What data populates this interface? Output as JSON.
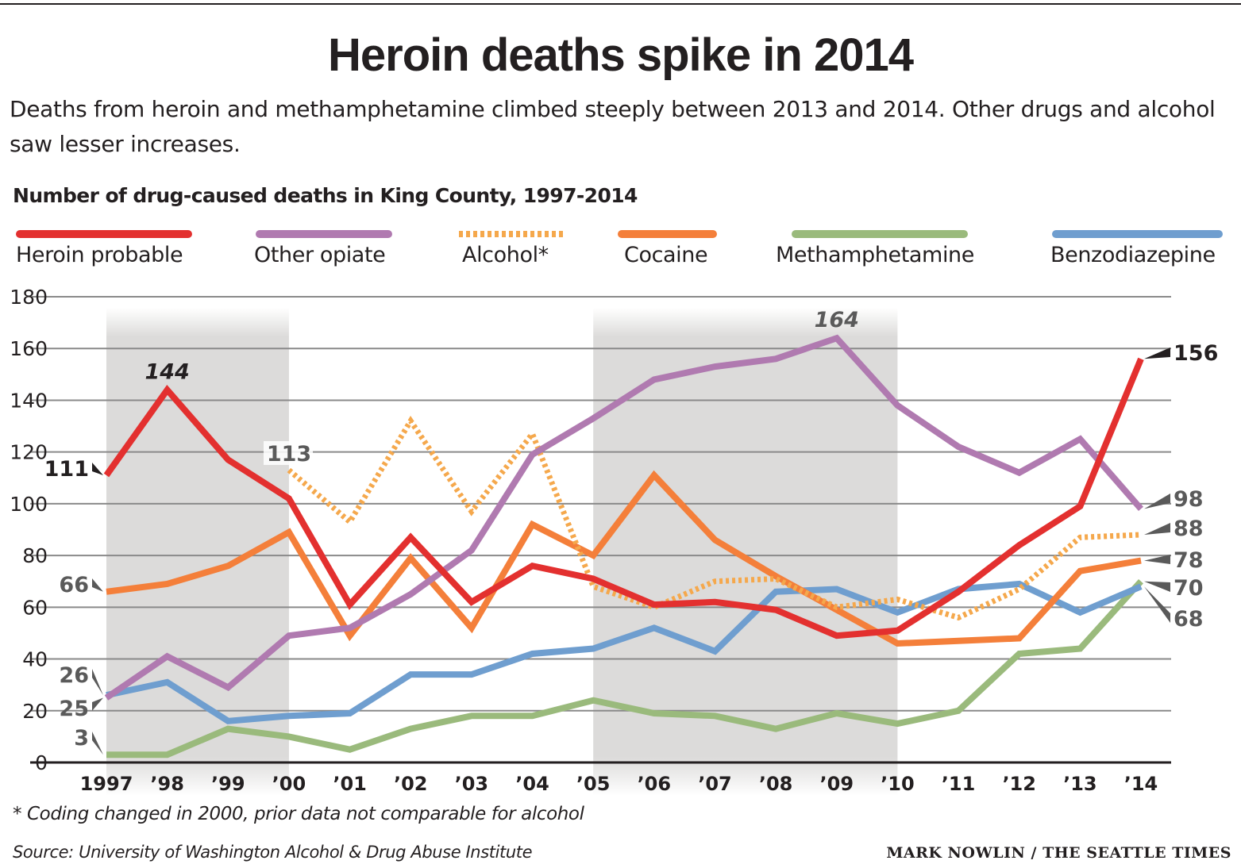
{
  "header": {
    "title": "Heroin deaths spike in 2014",
    "subtitle": "Deaths from heroin and methamphetamine climbed steeply between 2013 and 2014. Other drugs and alcohol saw lesser increases."
  },
  "footer": {
    "footnote": "* Coding changed in 2000, prior data not comparable for alcohol",
    "source": "Source: University of Washington Alcohol & Drug Abuse Institute",
    "credit": "MARK NOWLIN / THE SEATTLE TIMES"
  },
  "chart_data": {
    "type": "line",
    "title": "Number of drug-caused deaths in King County, 1997-2014",
    "xlabel": "",
    "ylabel": "",
    "x": [
      1997,
      1998,
      1999,
      2000,
      2001,
      2002,
      2003,
      2004,
      2005,
      2006,
      2007,
      2008,
      2009,
      2010,
      2011,
      2012,
      2013,
      2014
    ],
    "x_tick_labels": [
      "1997",
      "’98",
      "’99",
      "’00",
      "’01",
      "’02",
      "’03",
      "’04",
      "’05",
      "’06",
      "’07",
      "’08",
      "’09",
      "’10",
      "’11",
      "’12",
      "’13",
      "’14"
    ],
    "y_ticks": [
      0,
      20,
      40,
      60,
      80,
      100,
      120,
      140,
      160,
      180
    ],
    "ylim": [
      0,
      180
    ],
    "grid": true,
    "legend_placement": "top",
    "shaded_periods": [
      [
        1997,
        2000
      ],
      [
        2005,
        2010
      ]
    ],
    "series": [
      {
        "name": "Heroin probable",
        "color": "#e3302f",
        "dashed": false,
        "values": [
          111,
          144,
          117,
          102,
          61,
          87,
          62,
          76,
          71,
          61,
          62,
          59,
          49,
          51,
          66,
          84,
          99,
          156
        ]
      },
      {
        "name": "Other opiate",
        "color": "#b07ab0",
        "dashed": false,
        "values": [
          25,
          41,
          29,
          49,
          52,
          65,
          82,
          119,
          133,
          148,
          153,
          156,
          164,
          138,
          122,
          112,
          125,
          98
        ]
      },
      {
        "name": "Alcohol*",
        "color": "#f5a84c",
        "dashed": true,
        "values": [
          null,
          null,
          null,
          113,
          93,
          132,
          97,
          127,
          68,
          60,
          70,
          71,
          60,
          63,
          56,
          67,
          87,
          88
        ]
      },
      {
        "name": "Cocaine",
        "color": "#f47f3a",
        "dashed": false,
        "values": [
          66,
          69,
          76,
          89,
          49,
          79,
          52,
          92,
          80,
          111,
          86,
          72,
          59,
          46,
          47,
          48,
          74,
          78
        ]
      },
      {
        "name": "Methamphetamine",
        "color": "#9aba7c",
        "dashed": false,
        "values": [
          3,
          3,
          13,
          10,
          5,
          13,
          18,
          18,
          24,
          19,
          18,
          13,
          19,
          15,
          20,
          42,
          44,
          70
        ]
      },
      {
        "name": "Benzodiazepine",
        "color": "#6f9ecf",
        "dashed": false,
        "values": [
          26,
          31,
          16,
          18,
          19,
          34,
          34,
          42,
          44,
          52,
          43,
          66,
          67,
          58,
          67,
          69,
          58,
          68
        ]
      }
    ],
    "annotations": [
      {
        "text": "111",
        "series": "Heroin probable",
        "x": 1997,
        "y": 111,
        "style": "bold-dark",
        "pointer": true
      },
      {
        "text": "144",
        "series": "Heroin probable",
        "x": 1998,
        "y": 144,
        "style": "italic-dark",
        "pointer": false
      },
      {
        "text": "156",
        "series": "Heroin probable",
        "x": 2014,
        "y": 156,
        "style": "bold-dark",
        "pointer": true
      },
      {
        "text": "164",
        "series": "Other opiate",
        "x": 2009,
        "y": 164,
        "style": "italic-gray",
        "pointer": false
      },
      {
        "text": "113",
        "series": "Alcohol*",
        "x": 2000,
        "y": 113,
        "style": "gray",
        "pointer": false
      },
      {
        "text": "66",
        "series": "Cocaine",
        "x": 1997,
        "y": 66,
        "style": "gray",
        "pointer": true
      },
      {
        "text": "26",
        "series": "Benzodiazepine",
        "x": 1997,
        "y": 26,
        "style": "gray",
        "pointer": true
      },
      {
        "text": "25",
        "series": "Other opiate",
        "x": 1997,
        "y": 25,
        "style": "gray",
        "pointer": true
      },
      {
        "text": "3",
        "series": "Methamphetamine",
        "x": 1997,
        "y": 3,
        "style": "gray",
        "pointer": true
      },
      {
        "text": "98",
        "series": "Other opiate",
        "x": 2014,
        "y": 98,
        "style": "gray",
        "pointer": true
      },
      {
        "text": "88",
        "series": "Alcohol*",
        "x": 2014,
        "y": 88,
        "style": "gray",
        "pointer": true
      },
      {
        "text": "78",
        "series": "Cocaine",
        "x": 2014,
        "y": 78,
        "style": "gray",
        "pointer": true
      },
      {
        "text": "70",
        "series": "Methamphetamine",
        "x": 2014,
        "y": 70,
        "style": "gray",
        "pointer": true
      },
      {
        "text": "68",
        "series": "Benzodiazepine",
        "x": 2014,
        "y": 68,
        "style": "gray",
        "pointer": true
      }
    ]
  }
}
